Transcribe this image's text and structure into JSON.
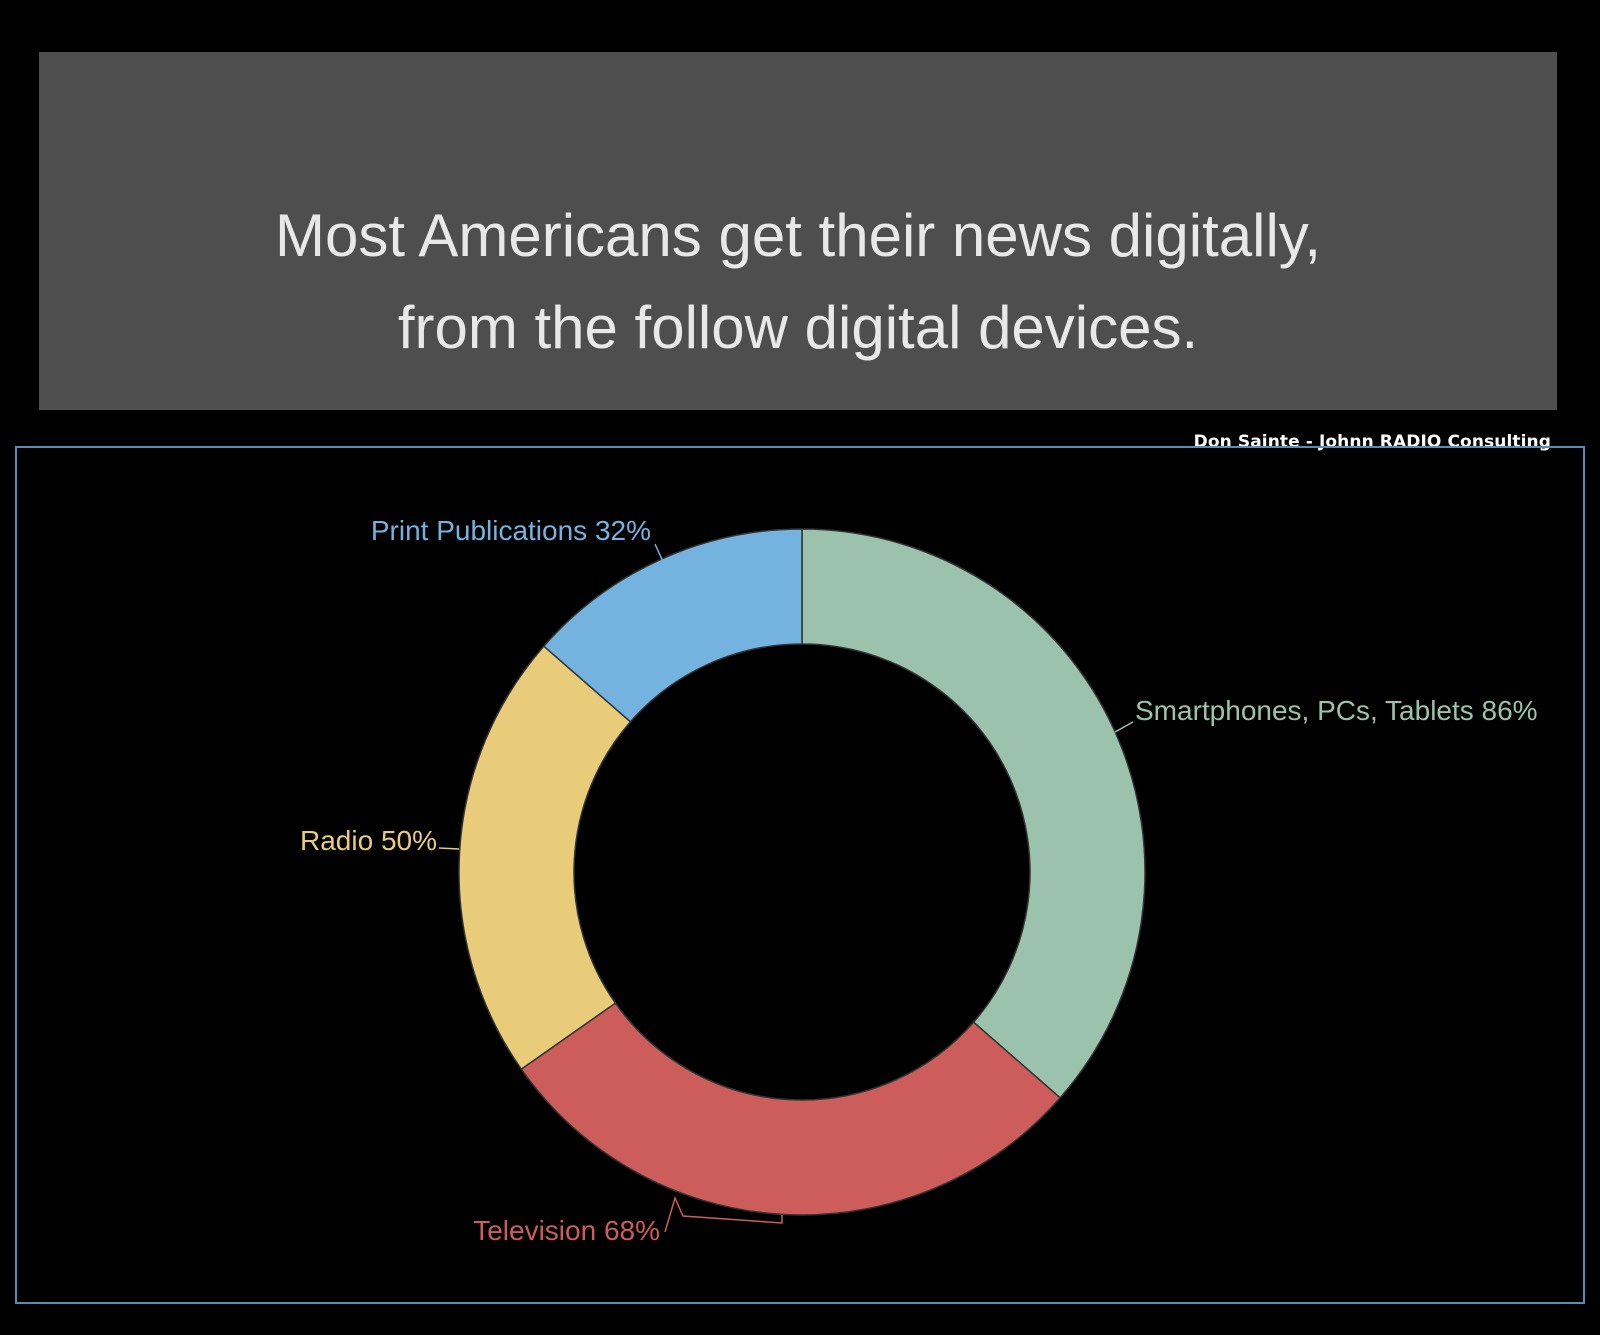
{
  "header": {
    "title_line1": "Most Americans get their news digitally,",
    "title_line2": "from the follow digital devices.",
    "credit": "Don Sainte - Johnn RADIO Consulting",
    "background": "#4e4e4e"
  },
  "chart_data": {
    "type": "pie",
    "donut": true,
    "categories": [
      "Smartphones, PCs, Tablets",
      "Television",
      "Radio",
      "Print Publications"
    ],
    "values": [
      86,
      68,
      50,
      32
    ],
    "labels": [
      "Smartphones, PCs, Tablets 86%",
      "Television 68%",
      "Radio 50%",
      "Print Publications 32%"
    ],
    "colors": [
      "#9bc2ad",
      "#cc5d5a",
      "#e9cc7a",
      "#74b3df"
    ],
    "start_angle_deg": 0,
    "direction": "clockwise"
  }
}
